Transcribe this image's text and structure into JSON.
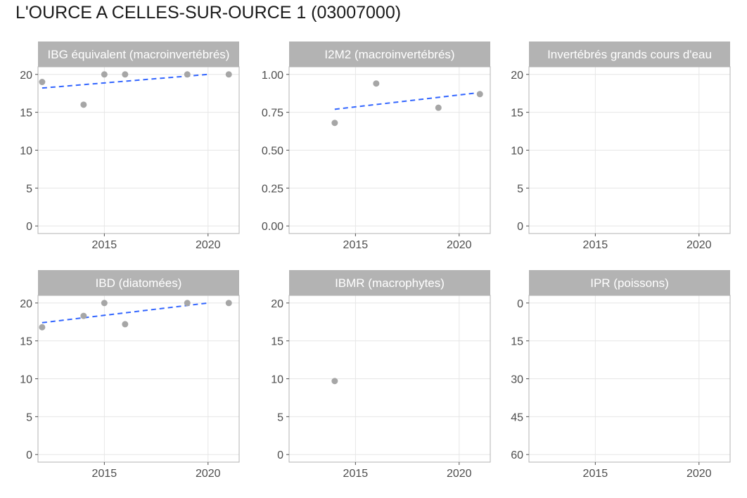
{
  "title": "L'OURCE A CELLES-SUR-OURCE 1 (03007000)",
  "colors": {
    "strip_bg": "#b3b3b3",
    "panel_border": "#b3b3b3",
    "grid": "#e6e6e6",
    "point": "#a6a6a6",
    "trend": "#3366ff",
    "tick_text": "#4d4d4d"
  },
  "chart_data": [
    {
      "type": "scatter",
      "title": "IBG équivalent (macroinvertébrés)",
      "xlim": [
        2011.8,
        2021.5
      ],
      "x_ticks": [
        2015,
        2020
      ],
      "ylim": [
        -1,
        21
      ],
      "y_ticks": [
        0,
        5,
        10,
        15,
        20
      ],
      "y_tick_labels": [
        "0",
        "5",
        "10",
        "15",
        "20"
      ],
      "x": [
        2012,
        2014,
        2015,
        2016,
        2019,
        2021
      ],
      "y": [
        19,
        16,
        20,
        20,
        20,
        20
      ],
      "trend": {
        "x": [
          2012,
          2020
        ],
        "y": [
          18.2,
          20.0
        ]
      },
      "grid": true
    },
    {
      "type": "scatter",
      "title": "I2M2 (macroinvertébrés)",
      "xlim": [
        2011.8,
        2021.5
      ],
      "x_ticks": [
        2015,
        2020
      ],
      "ylim": [
        -0.05,
        1.05
      ],
      "y_ticks": [
        0,
        0.25,
        0.5,
        0.75,
        1.0
      ],
      "y_tick_labels": [
        "0.00",
        "0.25",
        "0.50",
        "0.75",
        "1.00"
      ],
      "x": [
        2014,
        2016,
        2019,
        2021
      ],
      "y": [
        0.68,
        0.94,
        0.78,
        0.87
      ],
      "trend": {
        "x": [
          2014,
          2021
        ],
        "y": [
          0.77,
          0.88
        ]
      },
      "grid": true
    },
    {
      "type": "scatter",
      "title": "Invertébrés grands cours d'eau",
      "xlim": [
        2011.8,
        2021.5
      ],
      "x_ticks": [
        2015,
        2020
      ],
      "ylim": [
        -1,
        21
      ],
      "y_ticks": [
        0,
        5,
        10,
        15,
        20
      ],
      "y_tick_labels": [
        "0",
        "5",
        "10",
        "15",
        "20"
      ],
      "x": [],
      "y": [],
      "grid": true
    },
    {
      "type": "scatter",
      "title": "IBD (diatomées)",
      "xlim": [
        2011.8,
        2021.5
      ],
      "x_ticks": [
        2015,
        2020
      ],
      "ylim": [
        -1,
        21
      ],
      "y_ticks": [
        0,
        5,
        10,
        15,
        20
      ],
      "y_tick_labels": [
        "0",
        "5",
        "10",
        "15",
        "20"
      ],
      "x": [
        2012,
        2014,
        2015,
        2016,
        2019,
        2021
      ],
      "y": [
        16.8,
        18.3,
        20,
        17.2,
        20,
        20
      ],
      "trend": {
        "x": [
          2012,
          2020
        ],
        "y": [
          17.4,
          20.0
        ]
      },
      "grid": true
    },
    {
      "type": "scatter",
      "title": "IBMR (macrophytes)",
      "xlim": [
        2011.8,
        2021.5
      ],
      "x_ticks": [
        2015,
        2020
      ],
      "ylim": [
        -1,
        21
      ],
      "y_ticks": [
        0,
        5,
        10,
        15,
        20
      ],
      "y_tick_labels": [
        "0",
        "5",
        "10",
        "15",
        "20"
      ],
      "x": [
        2014
      ],
      "y": [
        9.7
      ],
      "grid": true
    },
    {
      "type": "scatter",
      "title": "IPR (poissons)",
      "xlim": [
        2011.8,
        2021.5
      ],
      "x_ticks": [
        2015,
        2020
      ],
      "ylim": [
        63,
        -3
      ],
      "y_scale": "reversed",
      "y_ticks": [
        0,
        15,
        30,
        45,
        60
      ],
      "y_tick_labels": [
        "0",
        "15",
        "30",
        "45",
        "60"
      ],
      "x": [],
      "y": [],
      "grid": true
    }
  ]
}
